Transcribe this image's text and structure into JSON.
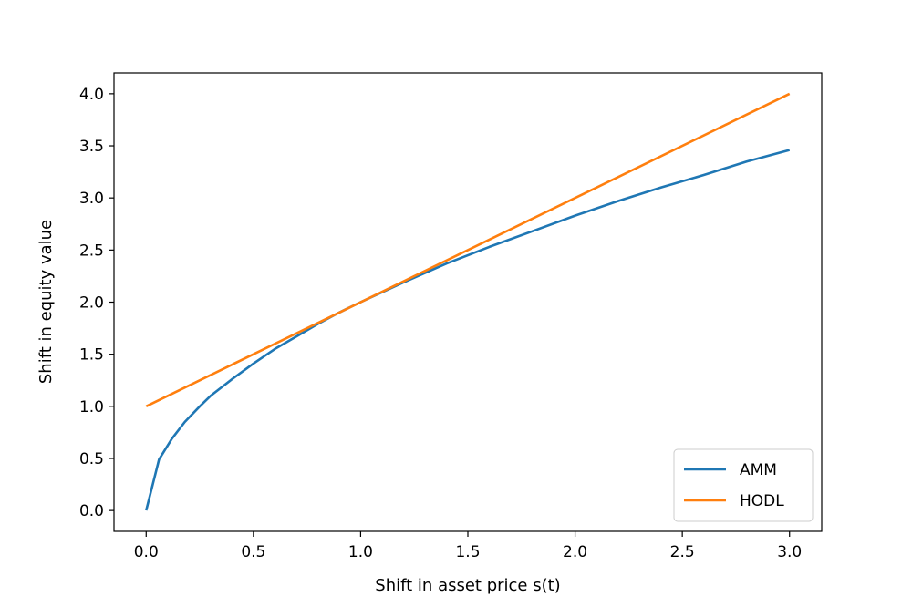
{
  "chart_data": {
    "type": "line",
    "title": "",
    "xlabel": "Shift in asset price s(t)",
    "ylabel": "Shift in equity value",
    "xlim": [
      -0.15,
      3.15
    ],
    "ylim": [
      -0.2,
      4.2
    ],
    "x_ticks": [
      "0.0",
      "0.5",
      "1.0",
      "1.5",
      "2.0",
      "2.5",
      "3.0"
    ],
    "y_ticks": [
      "0.0",
      "0.5",
      "1.0",
      "1.5",
      "2.0",
      "2.5",
      "3.0",
      "3.5",
      "4.0"
    ],
    "grid": false,
    "legend_position": "bottom-right",
    "series": [
      {
        "name": "AMM",
        "color": "#1f77b4",
        "x": [
          0.0,
          0.06,
          0.12,
          0.18,
          0.25,
          0.3,
          0.4,
          0.5,
          0.6,
          0.7,
          0.8,
          0.9,
          1.0,
          1.2,
          1.4,
          1.6,
          1.8,
          2.0,
          2.2,
          2.4,
          2.6,
          2.8,
          3.0
        ],
        "y": [
          0.0,
          0.49,
          0.69,
          0.85,
          1.0,
          1.1,
          1.26,
          1.41,
          1.55,
          1.67,
          1.79,
          1.9,
          2.0,
          2.19,
          2.37,
          2.53,
          2.68,
          2.83,
          2.97,
          3.1,
          3.22,
          3.35,
          3.46
        ]
      },
      {
        "name": "HODL",
        "color": "#ff7f0e",
        "x": [
          0.0,
          3.0
        ],
        "y": [
          1.0,
          4.0
        ]
      }
    ]
  }
}
